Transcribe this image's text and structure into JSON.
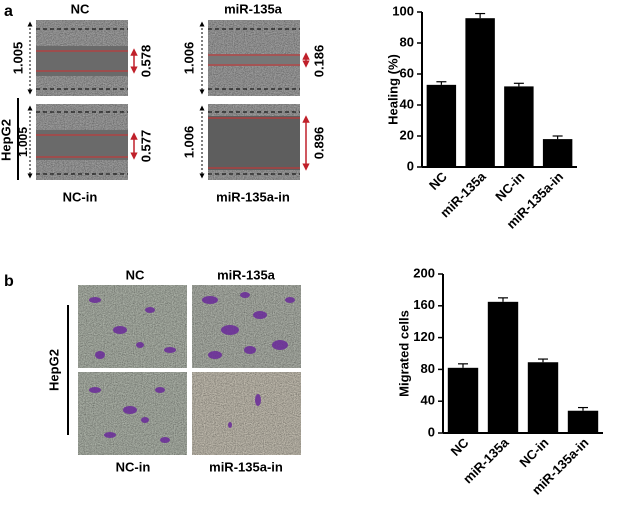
{
  "panels": {
    "a": {
      "letter": "a",
      "top_labels": [
        "NC",
        "miR-135a"
      ],
      "bottom_labels": [
        "NC-in",
        "miR-135a-in"
      ],
      "cell_line": "HepG2",
      "widths_top": [
        "1.005",
        "0.578",
        "1.006",
        "0.186"
      ],
      "widths_bottom": [
        "1.005",
        "0.577",
        "1.006",
        "0.896"
      ]
    },
    "b": {
      "letter": "b",
      "top_labels": [
        "NC",
        "miR-135a"
      ],
      "bottom_labels": [
        "NC-in",
        "miR-135a-in"
      ],
      "cell_line": "HepG2"
    }
  },
  "chart_data": [
    {
      "type": "bar",
      "y_label": "Healing (%)",
      "categories": [
        "NC",
        "miR-135a",
        "NC-in",
        "miR-135a-in"
      ],
      "values": [
        53,
        96,
        52,
        18
      ],
      "errors": [
        2,
        3,
        2,
        2
      ],
      "color": "#000000",
      "ylim": [
        0,
        100
      ],
      "yticks": [
        0,
        20,
        40,
        60,
        80,
        100
      ]
    },
    {
      "type": "bar",
      "y_label": "Migrated cells",
      "categories": [
        "NC",
        "miR-135a",
        "NC-in",
        "miR-135a-in"
      ],
      "values": [
        82,
        165,
        89,
        28
      ],
      "errors": [
        5,
        5,
        4,
        4
      ],
      "color": "#000000",
      "ylim": [
        0,
        200
      ],
      "yticks": [
        0,
        40,
        80,
        120,
        160,
        200
      ]
    }
  ]
}
